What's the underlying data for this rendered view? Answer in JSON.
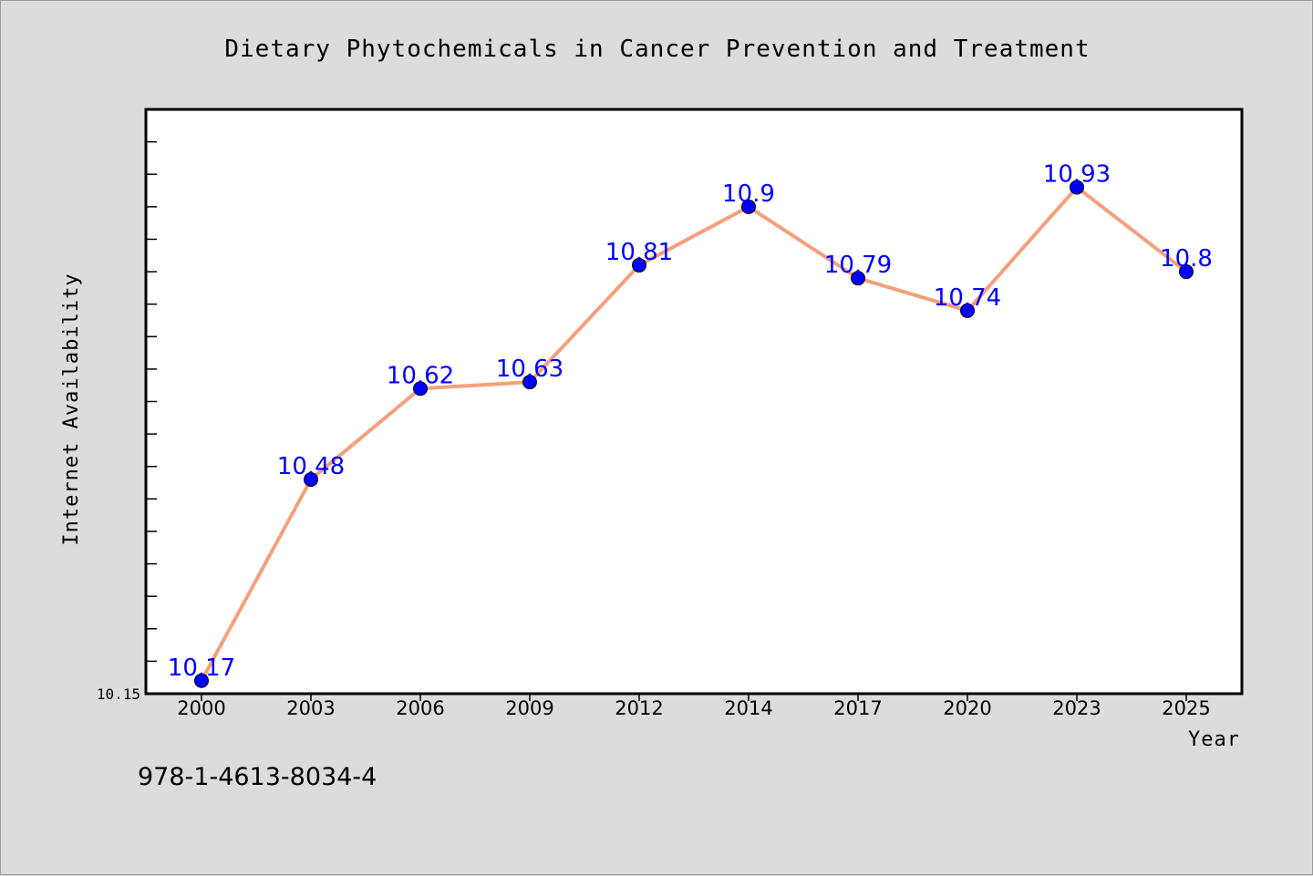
{
  "chart_data": {
    "type": "line",
    "title": "Dietary Phytochemicals in Cancer Prevention and Treatment",
    "xlabel": "Year",
    "ylabel": "Internet Availability",
    "categories": [
      "2000",
      "2003",
      "2006",
      "2009",
      "2012",
      "2014",
      "2017",
      "2020",
      "2023",
      "2025"
    ],
    "values": [
      10.17,
      10.48,
      10.62,
      10.63,
      10.81,
      10.9,
      10.79,
      10.74,
      10.93,
      10.8
    ],
    "ylim": [
      10.15,
      11.05
    ],
    "y_tick_labels": [
      "10.15"
    ],
    "grid": false,
    "line_color": "#f4a07c",
    "marker_color": "#0000ff",
    "label_color": "#0000ff",
    "plot_background": "#ffffff"
  },
  "annotation": "978-1-4613-8034-4"
}
